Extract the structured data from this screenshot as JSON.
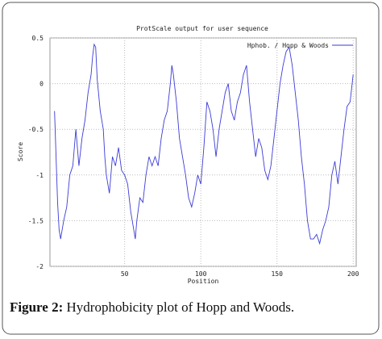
{
  "chart_data": {
    "type": "line",
    "title": "ProtScale output for user sequence",
    "x_label": "Position",
    "y_label": "Score",
    "x": [
      4,
      5,
      6,
      7,
      8,
      10,
      12,
      14,
      16,
      18,
      19,
      20,
      22,
      24,
      26,
      28,
      29,
      30,
      31,
      32,
      34,
      36,
      37,
      38,
      40,
      42,
      44,
      46,
      48,
      50,
      52,
      54,
      56,
      57,
      58,
      60,
      62,
      64,
      66,
      68,
      70,
      72,
      74,
      76,
      78,
      80,
      81,
      82,
      84,
      86,
      88,
      90,
      92,
      94,
      96,
      98,
      100,
      102,
      104,
      106,
      108,
      110,
      112,
      114,
      116,
      118,
      120,
      122,
      124,
      126,
      128,
      130,
      132,
      134,
      136,
      138,
      140,
      142,
      144,
      146,
      148,
      150,
      152,
      154,
      156,
      158,
      160,
      162,
      164,
      166,
      168,
      170,
      172,
      174,
      176,
      178,
      180,
      182,
      184,
      186,
      188,
      190,
      192,
      194,
      196,
      198,
      200
    ],
    "series": [
      {
        "name": "Hphob. / Hopp & Woods",
        "color": "#3b3bd6",
        "values": [
          -0.3,
          -0.8,
          -1.3,
          -1.6,
          -1.7,
          -1.5,
          -1.35,
          -1.0,
          -0.9,
          -0.5,
          -0.7,
          -0.9,
          -0.6,
          -0.4,
          -0.1,
          0.1,
          0.3,
          0.43,
          0.4,
          0.05,
          -0.3,
          -0.5,
          -0.8,
          -1.0,
          -1.2,
          -0.8,
          -0.9,
          -0.7,
          -0.95,
          -1.0,
          -1.1,
          -1.4,
          -1.6,
          -1.7,
          -1.5,
          -1.25,
          -1.3,
          -1.0,
          -0.8,
          -0.9,
          -0.8,
          -0.9,
          -0.6,
          -0.4,
          -0.3,
          0.0,
          0.2,
          0.1,
          -0.2,
          -0.6,
          -0.8,
          -1.0,
          -1.25,
          -1.35,
          -1.2,
          -1.0,
          -1.1,
          -0.7,
          -0.2,
          -0.3,
          -0.5,
          -0.8,
          -0.5,
          -0.3,
          -0.1,
          0.0,
          -0.3,
          -0.4,
          -0.2,
          -0.1,
          0.1,
          0.2,
          -0.2,
          -0.5,
          -0.8,
          -0.6,
          -0.7,
          -0.95,
          -1.05,
          -0.9,
          -0.6,
          -0.3,
          0.0,
          0.2,
          0.35,
          0.4,
          0.2,
          -0.1,
          -0.4,
          -0.8,
          -1.1,
          -1.5,
          -1.7,
          -1.7,
          -1.65,
          -1.75,
          -1.6,
          -1.5,
          -1.35,
          -1.0,
          -0.85,
          -1.1,
          -0.8,
          -0.5,
          -0.25,
          -0.2,
          0.1
        ]
      }
    ],
    "xlim": [
      1,
      202
    ],
    "xticks": [
      50,
      100,
      150,
      200
    ],
    "ylim": [
      -2,
      0.5
    ],
    "yticks": [
      0.5,
      0,
      -0.5,
      -1,
      -1.5,
      -2
    ],
    "grid": true,
    "legend": "top-right"
  },
  "caption": {
    "label": "Figure 2:",
    "text": "Hydrophobicity plot of Hopp and Woods."
  }
}
